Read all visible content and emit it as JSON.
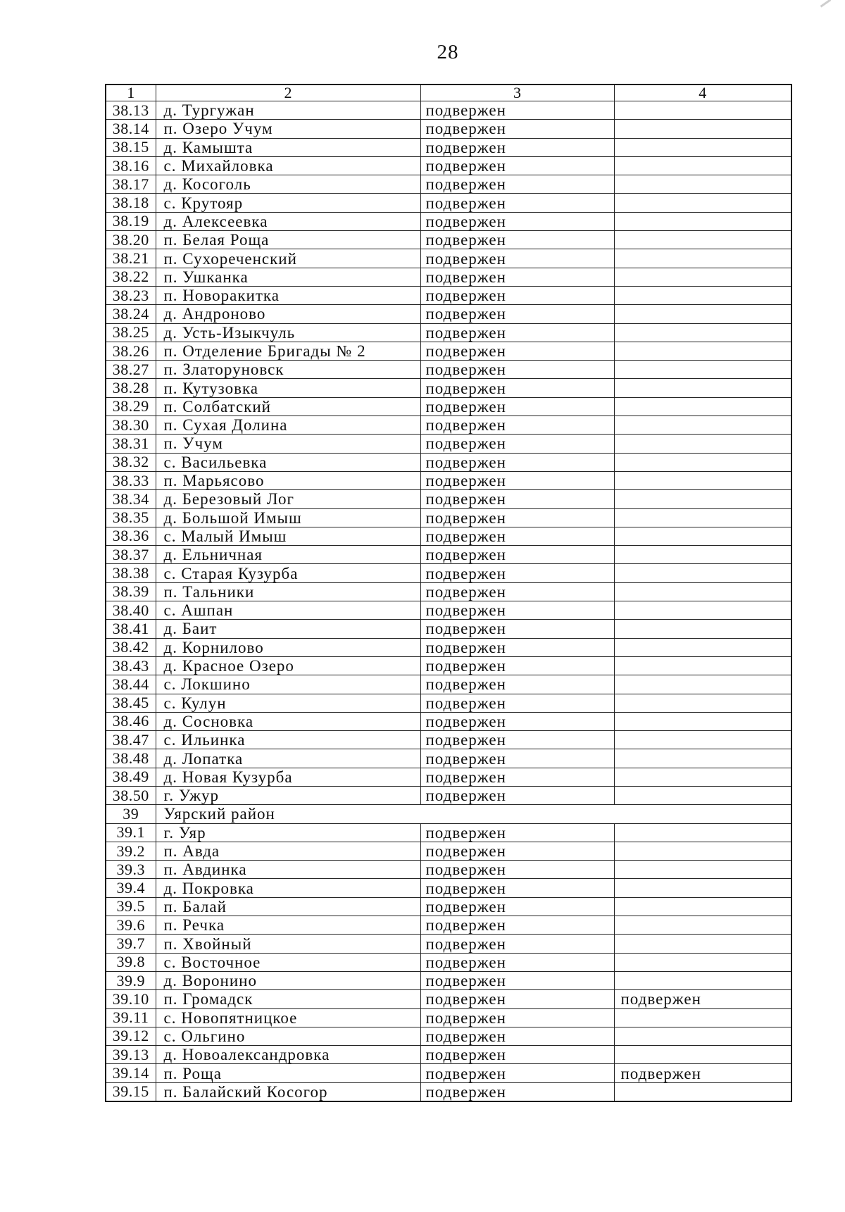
{
  "page": {
    "number": "28"
  },
  "table": {
    "headers": [
      "1",
      "2",
      "3",
      "4"
    ],
    "rows": [
      {
        "num": "38.13",
        "name": "д. Тургужан",
        "c3": "подвержен",
        "c4": ""
      },
      {
        "num": "38.14",
        "name": "п. Озеро Учум",
        "c3": "подвержен",
        "c4": ""
      },
      {
        "num": "38.15",
        "name": "д. Камышта",
        "c3": "подвержен",
        "c4": ""
      },
      {
        "num": "38.16",
        "name": "с. Михайловка",
        "c3": "подвержен",
        "c4": ""
      },
      {
        "num": "38.17",
        "name": "д. Косоголь",
        "c3": "подвержен",
        "c4": ""
      },
      {
        "num": "38.18",
        "name": "с. Крутояр",
        "c3": "подвержен",
        "c4": ""
      },
      {
        "num": "38.19",
        "name": "д. Алексеевка",
        "c3": "подвержен",
        "c4": ""
      },
      {
        "num": "38.20",
        "name": "п. Белая Роща",
        "c3": "подвержен",
        "c4": ""
      },
      {
        "num": "38.21",
        "name": "п. Сухореченский",
        "c3": "подвержен",
        "c4": ""
      },
      {
        "num": "38.22",
        "name": "п. Ушканка",
        "c3": "подвержен",
        "c4": ""
      },
      {
        "num": "38.23",
        "name": "п. Новоракитка",
        "c3": "подвержен",
        "c4": ""
      },
      {
        "num": "38.24",
        "name": "д. Андроново",
        "c3": "подвержен",
        "c4": ""
      },
      {
        "num": "38.25",
        "name": "д. Усть-Изыкчуль",
        "c3": "подвержен",
        "c4": ""
      },
      {
        "num": "38.26",
        "name": "п. Отделение Бригады № 2",
        "c3": "подвержен",
        "c4": ""
      },
      {
        "num": "38.27",
        "name": "п. Златоруновск",
        "c3": "подвержен",
        "c4": ""
      },
      {
        "num": "38.28",
        "name": "п. Кутузовка",
        "c3": "подвержен",
        "c4": ""
      },
      {
        "num": "38.29",
        "name": "п. Солбатский",
        "c3": "подвержен",
        "c4": ""
      },
      {
        "num": "38.30",
        "name": "п. Сухая Долина",
        "c3": "подвержен",
        "c4": ""
      },
      {
        "num": "38.31",
        "name": "п. Учум",
        "c3": "подвержен",
        "c4": ""
      },
      {
        "num": "38.32",
        "name": "с. Васильевка",
        "c3": "подвержен",
        "c4": ""
      },
      {
        "num": "38.33",
        "name": "п. Марьясово",
        "c3": "подвержен",
        "c4": ""
      },
      {
        "num": "38.34",
        "name": "д. Березовый Лог",
        "c3": "подвержен",
        "c4": ""
      },
      {
        "num": "38.35",
        "name": "д. Большой Имыш",
        "c3": "подвержен",
        "c4": ""
      },
      {
        "num": "38.36",
        "name": "с. Малый Имыш",
        "c3": "подвержен",
        "c4": ""
      },
      {
        "num": "38.37",
        "name": "д. Ельничная",
        "c3": "подвержен",
        "c4": ""
      },
      {
        "num": "38.38",
        "name": "с. Старая Кузурба",
        "c3": "подвержен",
        "c4": ""
      },
      {
        "num": "38.39",
        "name": "п. Тальники",
        "c3": "подвержен",
        "c4": ""
      },
      {
        "num": "38.40",
        "name": "с. Ашпан",
        "c3": "подвержен",
        "c4": ""
      },
      {
        "num": "38.41",
        "name": "д. Баит",
        "c3": "подвержен",
        "c4": ""
      },
      {
        "num": "38.42",
        "name": "д. Корнилово",
        "c3": "подвержен",
        "c4": ""
      },
      {
        "num": "38.43",
        "name": "д. Красное Озеро",
        "c3": "подвержен",
        "c4": ""
      },
      {
        "num": "38.44",
        "name": "с. Локшино",
        "c3": "подвержен",
        "c4": ""
      },
      {
        "num": "38.45",
        "name": "с. Кулун",
        "c3": "подвержен",
        "c4": ""
      },
      {
        "num": "38.46",
        "name": "д. Сосновка",
        "c3": "подвержен",
        "c4": ""
      },
      {
        "num": "38.47",
        "name": "с. Ильинка",
        "c3": "подвержен",
        "c4": ""
      },
      {
        "num": "38.48",
        "name": "д. Лопатка",
        "c3": "подвержен",
        "c4": ""
      },
      {
        "num": "38.49",
        "name": "д. Новая Кузурба",
        "c3": "подвержен",
        "c4": ""
      },
      {
        "num": "38.50",
        "name": "г. Ужур",
        "c3": "подвержен",
        "c4": ""
      },
      {
        "num": "39",
        "name": "Уярский район",
        "section": true
      },
      {
        "num": "39.1",
        "name": "г. Уяр",
        "c3": "подвержен",
        "c4": ""
      },
      {
        "num": "39.2",
        "name": "п. Авда",
        "c3": "подвержен",
        "c4": ""
      },
      {
        "num": "39.3",
        "name": "п. Авдинка",
        "c3": "подвержен",
        "c4": ""
      },
      {
        "num": "39.4",
        "name": "д. Покровка",
        "c3": "подвержен",
        "c4": ""
      },
      {
        "num": "39.5",
        "name": "п. Балай",
        "c3": "подвержен",
        "c4": ""
      },
      {
        "num": "39.6",
        "name": "п. Речка",
        "c3": "подвержен",
        "c4": ""
      },
      {
        "num": "39.7",
        "name": "п. Хвойный",
        "c3": "подвержен",
        "c4": ""
      },
      {
        "num": "39.8",
        "name": "с. Восточное",
        "c3": "подвержен",
        "c4": ""
      },
      {
        "num": "39.9",
        "name": "д. Воронино",
        "c3": "подвержен",
        "c4": ""
      },
      {
        "num": "39.10",
        "name": "п. Громадск",
        "c3": "подвержен",
        "c4": "подвержен"
      },
      {
        "num": "39.11",
        "name": "с. Новопятницкое",
        "c3": "подвержен",
        "c4": ""
      },
      {
        "num": "39.12",
        "name": "с. Ольгино",
        "c3": "подвержен",
        "c4": ""
      },
      {
        "num": "39.13",
        "name": "д. Новоалександровка",
        "c3": "подвержен",
        "c4": ""
      },
      {
        "num": "39.14",
        "name": "п. Роща",
        "c3": "подвержен",
        "c4": "подвержен"
      },
      {
        "num": "39.15",
        "name": "п. Балайский Косогор",
        "c3": "подвержен",
        "c4": ""
      }
    ]
  }
}
